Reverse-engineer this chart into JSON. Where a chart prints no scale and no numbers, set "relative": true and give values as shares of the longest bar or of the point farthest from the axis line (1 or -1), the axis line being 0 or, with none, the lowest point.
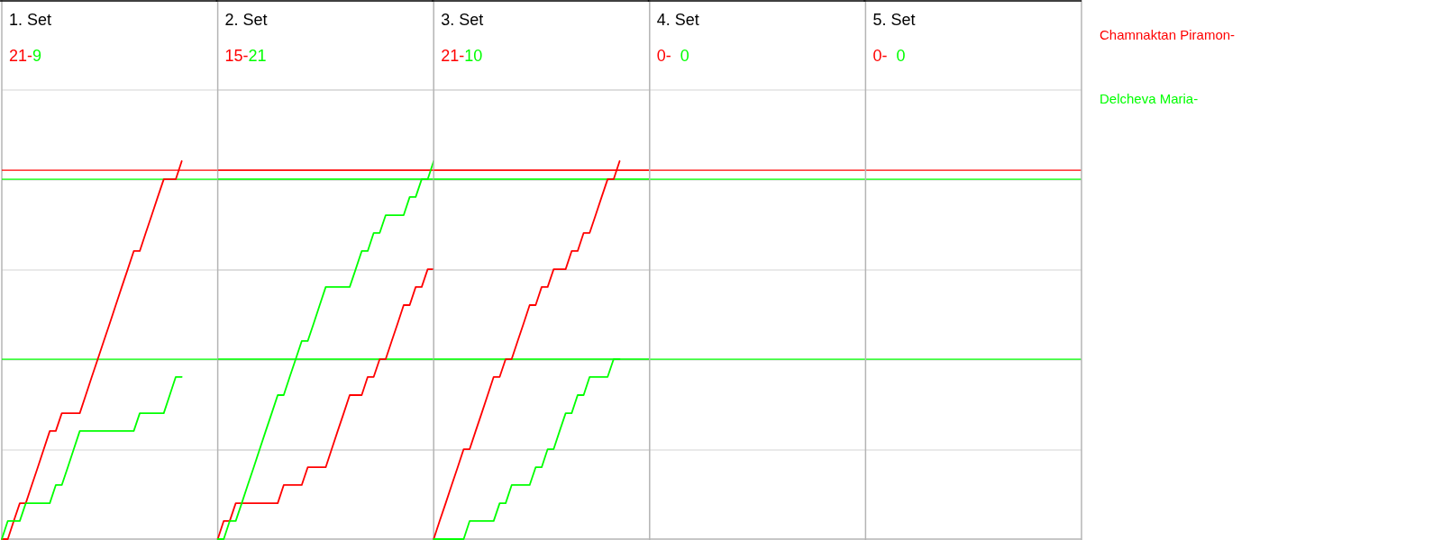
{
  "chart_data": [
    {
      "type": "line",
      "title": "1. Set",
      "annotations": [
        "21-",
        "9"
      ],
      "relative": true,
      "grid": true,
      "legend": "right",
      "categories": [
        null,
        null,
        null,
        null,
        null,
        null,
        null,
        null,
        null,
        null,
        null,
        null,
        null,
        null,
        null,
        null,
        null,
        null,
        null,
        null,
        null,
        null,
        null,
        null,
        null,
        null,
        null,
        null,
        null,
        null,
        null,
        null,
        null,
        null,
        null,
        null,
        null
      ],
      "ref_lines": [
        {
          "axis": "y",
          "value": 0.976,
          "color": "#ff0000"
        },
        {
          "axis": "y",
          "value": 0.952,
          "color": "#00ff00"
        },
        {
          "axis": "y",
          "value": 0.476,
          "color": "#00ff00"
        }
      ],
      "series": [
        {
          "name": "Chamnaktan Piramon-",
          "color": "#ff0000",
          "values": [
            0,
            0,
            0.048,
            0.095,
            0.095,
            0.143,
            0.19,
            0.238,
            0.286,
            0.286,
            0.333,
            0.333,
            0.333,
            0.333,
            0.381,
            0.429,
            0.476,
            0.524,
            0.571,
            0.619,
            0.667,
            0.714,
            0.762,
            0.762,
            0.81,
            0.857,
            0.905,
            0.952,
            0.952,
            0.952,
            1,
            null,
            null,
            null,
            null,
            null,
            null
          ]
        },
        {
          "name": "Delcheva Maria-",
          "color": "#00ff00",
          "values": [
            0,
            0.048,
            0.048,
            0.048,
            0.095,
            0.095,
            0.095,
            0.095,
            0.095,
            0.143,
            0.143,
            0.19,
            0.238,
            0.286,
            0.286,
            0.286,
            0.286,
            0.286,
            0.286,
            0.286,
            0.286,
            0.286,
            0.286,
            0.333,
            0.333,
            0.333,
            0.333,
            0.333,
            0.381,
            0.429,
            0.429,
            null,
            null,
            null,
            null,
            null,
            null
          ]
        }
      ]
    },
    {
      "type": "line",
      "title": "2. Set",
      "annotations": [
        "15-",
        "21"
      ],
      "relative": true,
      "grid": true,
      "categories": [
        null,
        null,
        null,
        null,
        null,
        null,
        null,
        null,
        null,
        null,
        null,
        null,
        null,
        null,
        null,
        null,
        null,
        null,
        null,
        null,
        null,
        null,
        null,
        null,
        null,
        null,
        null,
        null,
        null,
        null,
        null,
        null,
        null,
        null,
        null,
        null,
        null
      ],
      "ref_lines": [
        {
          "axis": "y",
          "value": 0.976,
          "color": "#ff0000"
        },
        {
          "axis": "y",
          "value": 0.952,
          "color": "#00ff00"
        },
        {
          "axis": "y",
          "value": 0.476,
          "color": "#00ff00"
        }
      ],
      "series": [
        {
          "color": "#ff0000",
          "values": [
            0,
            0.048,
            0.048,
            0.095,
            0.095,
            0.095,
            0.095,
            0.095,
            0.095,
            0.095,
            0.095,
            0.143,
            0.143,
            0.143,
            0.143,
            0.19,
            0.19,
            0.19,
            0.19,
            0.238,
            0.286,
            0.333,
            0.381,
            0.381,
            0.381,
            0.429,
            0.429,
            0.476,
            0.476,
            0.524,
            0.571,
            0.619,
            0.619,
            0.667,
            0.667,
            0.714,
            0.714
          ]
        },
        {
          "color": "#00ff00",
          "values": [
            0,
            0,
            0.048,
            0.048,
            0.095,
            0.143,
            0.19,
            0.238,
            0.286,
            0.333,
            0.381,
            0.381,
            0.429,
            0.476,
            0.524,
            0.524,
            0.571,
            0.619,
            0.667,
            0.667,
            0.667,
            0.667,
            0.667,
            0.714,
            0.762,
            0.762,
            0.81,
            0.81,
            0.857,
            0.857,
            0.857,
            0.857,
            0.905,
            0.905,
            0.952,
            0.952,
            1
          ]
        }
      ]
    },
    {
      "type": "line",
      "title": "3. Set",
      "annotations": [
        "21-",
        "10"
      ],
      "relative": true,
      "grid": true,
      "categories": [
        null,
        null,
        null,
        null,
        null,
        null,
        null,
        null,
        null,
        null,
        null,
        null,
        null,
        null,
        null,
        null,
        null,
        null,
        null,
        null,
        null,
        null,
        null,
        null,
        null,
        null,
        null,
        null,
        null,
        null,
        null,
        null,
        null,
        null,
        null,
        null,
        null
      ],
      "ref_lines": [
        {
          "axis": "y",
          "value": 0.976,
          "color": "#ff0000"
        },
        {
          "axis": "y",
          "value": 0.952,
          "color": "#00ff00"
        },
        {
          "axis": "y",
          "value": 0.476,
          "color": "#00ff00"
        }
      ],
      "series": [
        {
          "color": "#ff0000",
          "values": [
            0,
            0.048,
            0.095,
            0.143,
            0.19,
            0.238,
            0.238,
            0.286,
            0.333,
            0.381,
            0.429,
            0.429,
            0.476,
            0.476,
            0.524,
            0.571,
            0.619,
            0.619,
            0.667,
            0.667,
            0.714,
            0.714,
            0.714,
            0.762,
            0.762,
            0.81,
            0.81,
            0.857,
            0.905,
            0.952,
            0.952,
            1,
            null,
            null,
            null,
            null,
            null
          ]
        },
        {
          "color": "#00ff00",
          "values": [
            0,
            0,
            0,
            0,
            0,
            0,
            0.048,
            0.048,
            0.048,
            0.048,
            0.048,
            0.095,
            0.095,
            0.143,
            0.143,
            0.143,
            0.143,
            0.19,
            0.19,
            0.238,
            0.238,
            0.286,
            0.333,
            0.333,
            0.381,
            0.381,
            0.429,
            0.429,
            0.429,
            0.429,
            0.476,
            0.476,
            null,
            null,
            null,
            null,
            null
          ]
        }
      ]
    },
    {
      "type": "other",
      "title": "4. Set",
      "annotations": [
        "0-",
        "0"
      ]
    },
    {
      "type": "other",
      "title": "5. Set",
      "annotations": [
        "0-",
        "0"
      ]
    }
  ]
}
